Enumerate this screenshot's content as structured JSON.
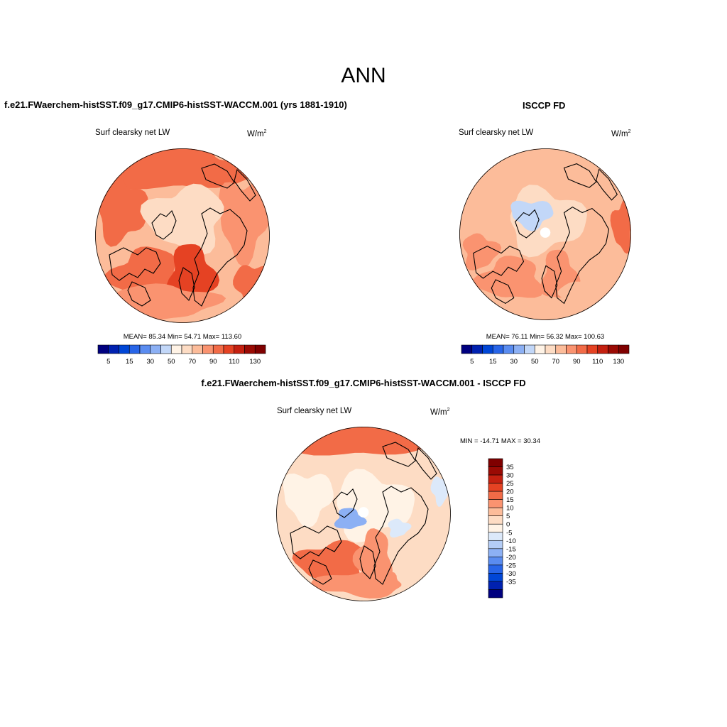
{
  "figure_title": "ANN",
  "colors": {
    "colorbar_abs": [
      "#00007f",
      "#0021b0",
      "#0046d6",
      "#2865e8",
      "#5a8cf0",
      "#8cb0f4",
      "#c2d7f8",
      "#fff3e6",
      "#fddcc4",
      "#fcbc9a",
      "#fa9370",
      "#f26b47",
      "#e54223",
      "#c42010",
      "#9a0a04",
      "#7f0000"
    ],
    "colorbar_diff": [
      "#00007f",
      "#0021b0",
      "#0046d6",
      "#2865e8",
      "#5a8cf0",
      "#8cb0f4",
      "#b4cdf6",
      "#dce9fa",
      "#fff3e6",
      "#fddcc4",
      "#fcbc9a",
      "#fa9370",
      "#f26b47",
      "#e54223",
      "#c42010",
      "#9a0a04",
      "#7f0000"
    ]
  },
  "panels": [
    {
      "title": "f.e21.FWaerchem-histSST.f09_g17.CMIP6-histSST-WACCM.001 (yrs 1881-1910)",
      "variable": "Surf clearsky net LW",
      "units_base": "W/m",
      "units_exp": "2",
      "stats": "MEAN=  85.34  Min=  54.71  Max= 113.60",
      "colorbar_labels": [
        "5",
        "15",
        "30",
        "50",
        "70",
        "90",
        "110",
        "130"
      ]
    },
    {
      "title": "ISCCP FD",
      "variable": "Surf clearsky net LW",
      "units_base": "W/m",
      "units_exp": "2",
      "stats": "MEAN=  76.11  Min=  56.32  Max= 100.63",
      "colorbar_labels": [
        "5",
        "15",
        "30",
        "50",
        "70",
        "90",
        "110",
        "130"
      ]
    },
    {
      "title": "f.e21.FWaerchem-histSST.f09_g17.CMIP6-histSST-WACCM.001 - ISCCP FD",
      "variable": "Surf clearsky net LW",
      "units_base": "W/m",
      "units_exp": "2",
      "stats": "MIN = -14.71 MAX =  30.34",
      "colorbar_labels": [
        "35",
        "30",
        "25",
        "20",
        "15",
        "10",
        "5",
        "0",
        "-5",
        "-10",
        "-15",
        "-20",
        "-25",
        "-30",
        "-35"
      ]
    }
  ]
}
